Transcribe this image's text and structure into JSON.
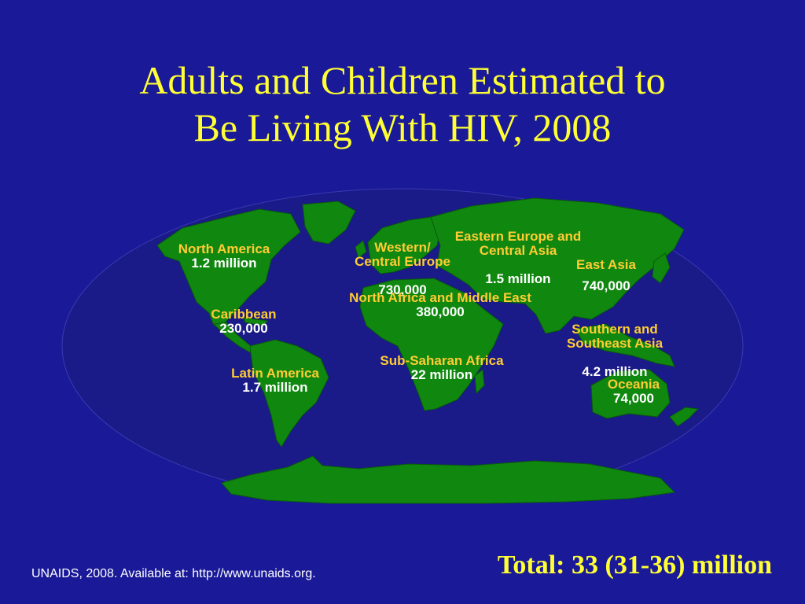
{
  "slide": {
    "title_line1": "Adults and Children Estimated to",
    "title_line2": "Be Living With HIV, 2008",
    "source": "UNAIDS, 2008. Available at: http://www.unaids.org.",
    "total": "Total: 33 (31-36) million"
  },
  "colors": {
    "background": "#1a1a99",
    "ocean": "#1a1a88",
    "land": "#108810",
    "title": "#ffff33",
    "region_name": "#ffcc33",
    "region_value": "#ffffff"
  },
  "regions": [
    {
      "id": "north-america",
      "name": "North America",
      "value": "1.2 million"
    },
    {
      "id": "caribbean",
      "name": "Caribbean",
      "value": "230,000"
    },
    {
      "id": "latin-america",
      "name": "Latin America",
      "value": "1.7 million"
    },
    {
      "id": "western-central-europe",
      "name": "Western/\nCentral Europe",
      "value": "730,000"
    },
    {
      "id": "eastern-europe-central-asia",
      "name": "Eastern Europe and\nCentral Asia",
      "value": "1.5 million"
    },
    {
      "id": "east-asia",
      "name": "East Asia",
      "value": "740,000"
    },
    {
      "id": "north-africa-middle-east",
      "name": "North Africa and Middle East",
      "value": "380,000"
    },
    {
      "id": "southern-southeast-asia",
      "name": "Southern and\nSoutheast Asia",
      "value": "4.2 million"
    },
    {
      "id": "sub-saharan-africa",
      "name": "Sub-Saharan Africa",
      "value": "22 million"
    },
    {
      "id": "oceania",
      "name": "Oceania",
      "value": "74,000"
    }
  ]
}
